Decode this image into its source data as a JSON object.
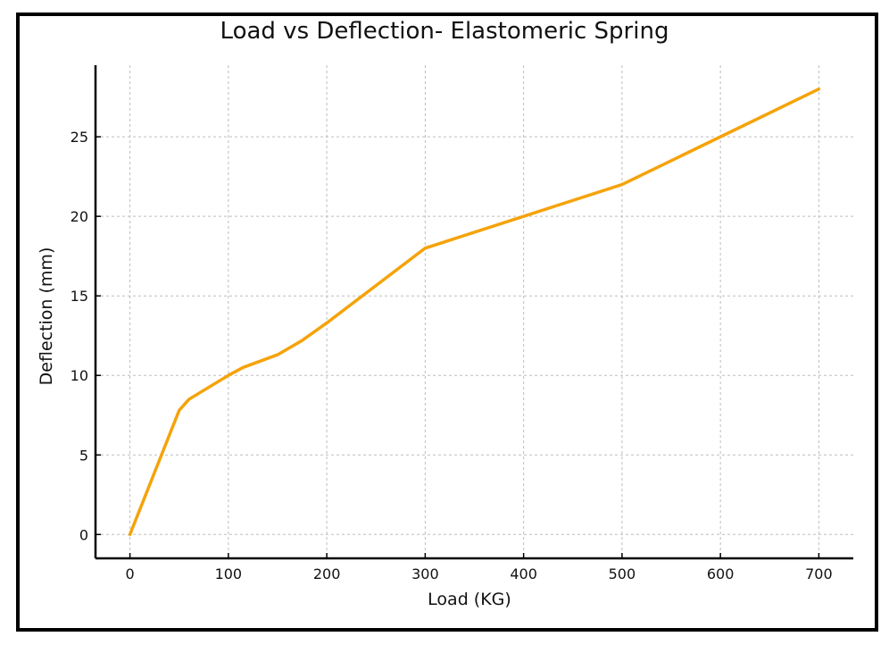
{
  "chart_data": {
    "type": "line",
    "title": "Load vs Deflection- Elastomeric Spring",
    "xlabel": "Load (KG)",
    "ylabel": "Deflection (mm)",
    "xlim": [
      -35,
      735
    ],
    "ylim": [
      -1.5,
      29.5
    ],
    "xticks": [
      0,
      100,
      200,
      300,
      400,
      500,
      600,
      700
    ],
    "yticks": [
      0,
      5,
      10,
      15,
      20,
      25
    ],
    "grid": true,
    "series": [
      {
        "color": "#f5a30a",
        "x": [
          0,
          50,
          60,
          100,
          115,
          150,
          175,
          200,
          300,
          400,
          500,
          600,
          700
        ],
        "y": [
          0,
          7.8,
          8.5,
          10,
          10.5,
          11.3,
          12.2,
          13.3,
          18,
          20,
          22,
          25,
          28
        ]
      }
    ]
  }
}
